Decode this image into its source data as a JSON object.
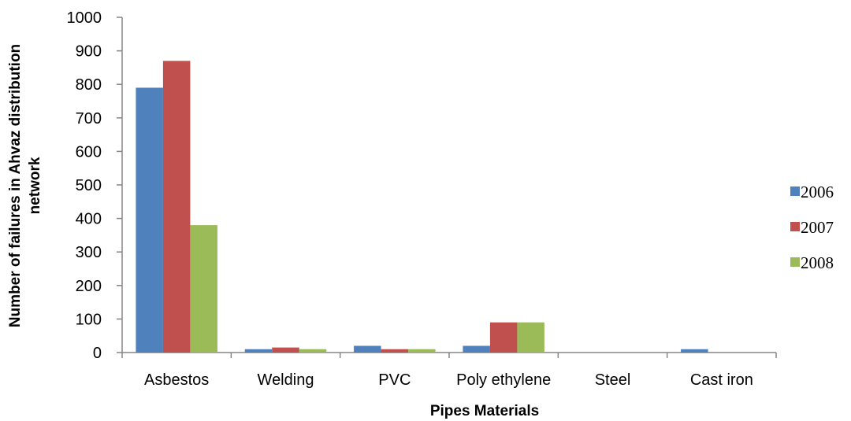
{
  "chart_data": {
    "type": "bar",
    "title": "",
    "xlabel": "Pipes  Materials",
    "ylabel_lines": [
      "Number of failures in Ahvaz distribution",
      "network"
    ],
    "categories": [
      "Asbestos",
      "Welding",
      "PVC",
      "Poly ethylene",
      "Steel",
      "Cast iron"
    ],
    "ylim": [
      0,
      1000
    ],
    "yticks": [
      0,
      100,
      200,
      300,
      400,
      500,
      600,
      700,
      800,
      900,
      1000
    ],
    "grid": false,
    "legend_position": "right",
    "series": [
      {
        "name": "2006",
        "color": "#4F81BD",
        "values": [
          790,
          10,
          20,
          20,
          0,
          10
        ]
      },
      {
        "name": "2007",
        "color": "#C0504D",
        "values": [
          870,
          15,
          10,
          90,
          0,
          0
        ]
      },
      {
        "name": "2008",
        "color": "#9BBB59",
        "values": [
          380,
          10,
          10,
          90,
          0,
          0
        ]
      }
    ]
  }
}
